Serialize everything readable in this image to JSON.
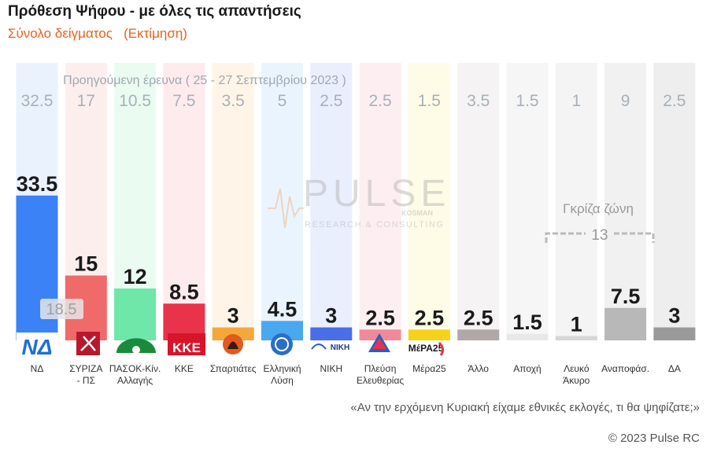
{
  "header": {
    "title": "Πρόθεση Ψήφου - με όλες τις απαντήσεις",
    "subtitle": "Σύνολο δείγματος   (Εκτίμηση)"
  },
  "chart_data": {
    "type": "bar",
    "categories": [
      "ΝΔ",
      "ΣΥΡΙΖΑ - ΠΣ",
      "ΠΑΣΟΚ-Κιν. Αλλαγής",
      "ΚΚΕ",
      "Σπαρτιάτες",
      "Ελληνική Λύση",
      "ΝΙΚΗ",
      "Πλεύση Ελευθερίας",
      "Μέρα25",
      "Άλλο",
      "Αποχή",
      "Λευκό Άκυρο",
      "Αναποφάσ.",
      "ΔΑ"
    ],
    "category_lines": [
      [
        "ΝΔ"
      ],
      [
        "ΣΥΡΙΖΑ",
        "- ΠΣ"
      ],
      [
        "ΠΑΣΟΚ-Κίν.",
        "Αλλαγής"
      ],
      [
        "ΚΚΕ"
      ],
      [
        "Σπαρτιάτες"
      ],
      [
        "Ελληνική",
        "Λύση"
      ],
      [
        "ΝΙΚΗ"
      ],
      [
        "Πλεύση",
        "Ελευθερίας"
      ],
      [
        "Μέρα25"
      ],
      [
        "Άλλο"
      ],
      [
        "Αποχή"
      ],
      [
        "Λευκό",
        "Άκυρο"
      ],
      [
        "Αναποφάσ."
      ],
      [
        "ΔΑ"
      ]
    ],
    "series": [
      {
        "name": "Εκτίμηση",
        "values": [
          33.5,
          15,
          12,
          8.5,
          3,
          4.5,
          3,
          2.5,
          2.5,
          2.5,
          1.5,
          1,
          7.5,
          3
        ]
      },
      {
        "name": "Προηγούμενη έρευνα",
        "values": [
          32.5,
          17,
          10.5,
          7.5,
          3.5,
          5,
          2.5,
          2.5,
          1.5,
          3.5,
          1.5,
          1,
          9,
          2.5
        ]
      }
    ],
    "colors": [
      "#3b82f6",
      "#f06a6a",
      "#6ee7a8",
      "#e8334a",
      "#f4a83a",
      "#4aa8f0",
      "#4a6ee8",
      "#f08a9a",
      "#f7d21a",
      "#b0a8a8",
      "#e8e8e8",
      "#d6d6d6",
      "#b8b8b8",
      "#9a9a9a"
    ],
    "bg_colors": [
      "#eaf2fe",
      "#fdeeee",
      "#eafbf2",
      "#fdebee",
      "#fef5e8",
      "#eaf4fe",
      "#eaeffd",
      "#fdeff1",
      "#fefbe6",
      "#f5f3f3",
      "#f6f6f6",
      "#f4f4f4",
      "#f1f1f1",
      "#eeeeee"
    ],
    "previous_label": "Προηγούμενη έρευνα  ( 25 - 27 Σεπτεμβρίου 2023 )",
    "inner_label": "18.5",
    "gray_zone_label": "Γκρίζα ζώνη",
    "gray_zone_value": "13",
    "grid": false,
    "ylim": [
      0,
      36
    ]
  },
  "logos": [
    "ΝΔ",
    "ΚΚΕ",
    "ΝΙΚΗ",
    "ΜέΡΑ25"
  ],
  "watermark": {
    "main": "PULSE",
    "sub": "RESEARCH & CONSULTING",
    "tag": "KOSMAN"
  },
  "footer": {
    "question": "«Αν την ερχόμενη Κυριακή είχαμε εθνικές εκλογές, τι θα ψηφίζατε;»",
    "copyright": "© 2023 Pulse RC"
  }
}
